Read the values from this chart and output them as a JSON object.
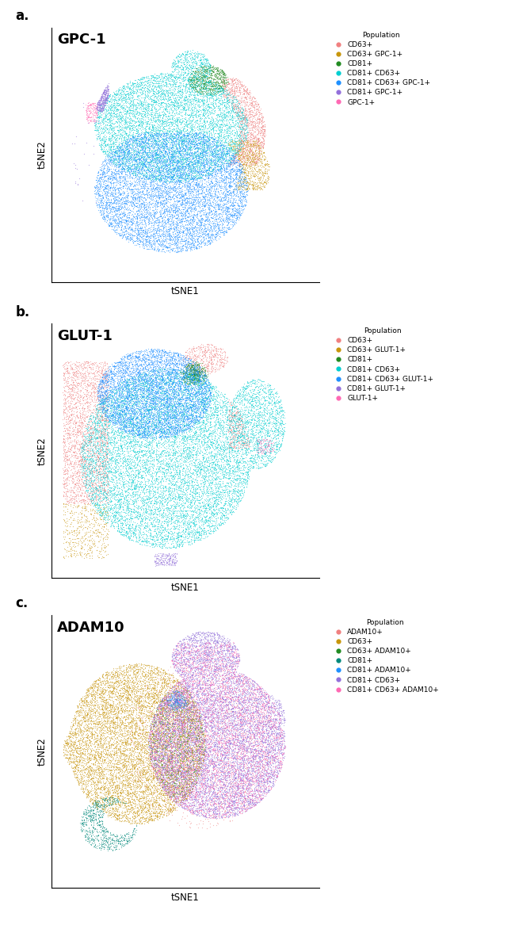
{
  "panels": [
    {
      "label": "a.",
      "title": "GPC-1",
      "populations": [
        {
          "name": "CD63+",
          "color": "#F08080"
        },
        {
          "name": "CD63+ GPC-1+",
          "color": "#C8960C"
        },
        {
          "name": "CD81+",
          "color": "#228B22"
        },
        {
          "name": "CD81+ CD63+",
          "color": "#00CED1"
        },
        {
          "name": "CD81+ CD63+ GPC-1+",
          "color": "#1E90FF"
        },
        {
          "name": "CD81+ GPC-1+",
          "color": "#9370DB"
        },
        {
          "name": "GPC-1+",
          "color": "#FF69B4"
        }
      ]
    },
    {
      "label": "b.",
      "title": "GLUT-1",
      "populations": [
        {
          "name": "CD63+",
          "color": "#F08080"
        },
        {
          "name": "CD63+ GLUT-1+",
          "color": "#C8960C"
        },
        {
          "name": "CD81+",
          "color": "#228B22"
        },
        {
          "name": "CD81+ CD63+",
          "color": "#00CED1"
        },
        {
          "name": "CD81+ CD63+ GLUT-1+",
          "color": "#1E90FF"
        },
        {
          "name": "CD81+ GLUT-1+",
          "color": "#9370DB"
        },
        {
          "name": "GLUT-1+",
          "color": "#FF69B4"
        }
      ]
    },
    {
      "label": "c.",
      "title": "ADAM10",
      "populations": [
        {
          "name": "ADAM10+",
          "color": "#F08080"
        },
        {
          "name": "CD63+",
          "color": "#C8960C"
        },
        {
          "name": "CD63+ ADAM10+",
          "color": "#228B22"
        },
        {
          "name": "CD81+",
          "color": "#00897B"
        },
        {
          "name": "CD81+ ADAM10+",
          "color": "#1E90FF"
        },
        {
          "name": "CD81+ CD63+",
          "color": "#9370DB"
        },
        {
          "name": "CD81+ CD63+ ADAM10+",
          "color": "#FF69B4"
        }
      ]
    }
  ],
  "xlabel": "tSNE1",
  "ylabel": "tSNE2",
  "legend_title": "Population",
  "background_color": "#ffffff",
  "point_size": 0.8,
  "point_alpha": 0.55
}
